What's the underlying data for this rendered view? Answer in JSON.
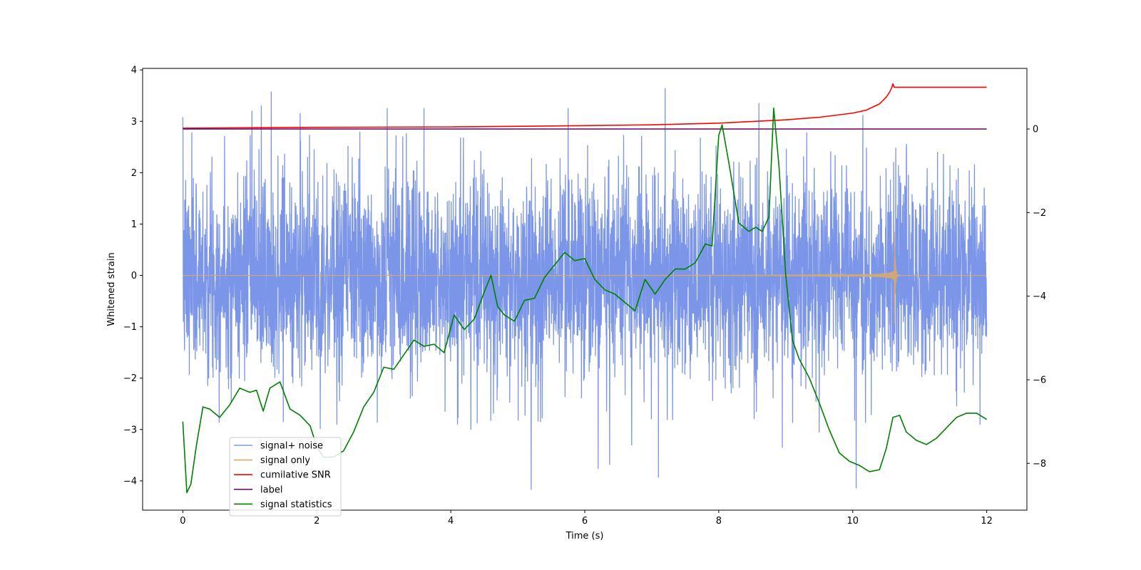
{
  "chart_data": {
    "type": "line",
    "title": "",
    "xlabel": "Time (s)",
    "ylabel": "Whitened strain",
    "xlim": [
      -0.6,
      12.6
    ],
    "ylim": [
      -4.57,
      4.03
    ],
    "y2lim": [
      -9.12,
      1.45
    ],
    "xticks": [
      0,
      2,
      4,
      6,
      8,
      10,
      12
    ],
    "yticks": [
      -4,
      -3,
      -2,
      -1,
      0,
      1,
      2,
      3,
      4
    ],
    "y2ticks": [
      -8,
      -6,
      -4,
      -2,
      0
    ],
    "xtick_labels": [
      "0",
      "2",
      "4",
      "6",
      "8",
      "10",
      "12"
    ],
    "ytick_labels": [
      "−4",
      "−3",
      "−2",
      "−1",
      "0",
      "1",
      "2",
      "3",
      "4"
    ],
    "y2tick_labels": [
      "−8",
      "−6",
      "−4",
      "−2",
      "0"
    ],
    "grid": false,
    "legend_position": "lower-left",
    "series": [
      {
        "name": "signal+ noise",
        "axis": "left",
        "color": "#7b95e8",
        "noise_std": 1.0,
        "duration": 12,
        "sample_rate": 350,
        "seed": 7,
        "outliers": [
          {
            "x": 0.0,
            "y": 3.08
          },
          {
            "x": 1.03,
            "y": 3.2
          },
          {
            "x": 1.17,
            "y": 3.3
          },
          {
            "x": 1.32,
            "y": 3.57
          },
          {
            "x": 1.75,
            "y": 3.15
          },
          {
            "x": 3.05,
            "y": 3.25
          },
          {
            "x": 3.6,
            "y": 3.25
          },
          {
            "x": 5.2,
            "y": -4.17
          },
          {
            "x": 5.75,
            "y": 3.25
          },
          {
            "x": 6.2,
            "y": -3.76
          },
          {
            "x": 6.37,
            "y": -3.68
          },
          {
            "x": 7.1,
            "y": -3.93
          },
          {
            "x": 7.2,
            "y": 3.64
          },
          {
            "x": 8.6,
            "y": 3.35
          },
          {
            "x": 8.95,
            "y": -3.35
          },
          {
            "x": 10.05,
            "y": -4.14
          },
          {
            "x": 10.15,
            "y": 3.12
          },
          {
            "x": 1.5,
            "y": -2.85
          },
          {
            "x": 2.3,
            "y": -2.9
          },
          {
            "x": 4.3,
            "y": -3.0
          },
          {
            "x": 6.7,
            "y": -3.3
          },
          {
            "x": 9.5,
            "y": -3.05
          },
          {
            "x": 11.9,
            "y": -2.9
          }
        ]
      },
      {
        "name": "signal only",
        "axis": "left",
        "color": "#d9a86a",
        "chirp": {
          "t_merge": 10.62,
          "f0": 35,
          "tau": 0.33,
          "a0": 0.02,
          "peak": 1.25,
          "ringdown": 0.012
        }
      },
      {
        "name": "cumilative SNR",
        "axis": "right",
        "color": "#ff0000",
        "x": [
          0,
          2,
          4,
          6,
          7,
          8,
          9,
          9.5,
          10,
          10.2,
          10.4,
          10.5,
          10.55,
          10.58,
          10.6,
          10.62,
          11,
          12
        ],
        "values": [
          0.02,
          0.04,
          0.05,
          0.08,
          0.1,
          0.14,
          0.22,
          0.28,
          0.38,
          0.45,
          0.6,
          0.76,
          0.88,
          0.98,
          1.08,
          1.0,
          1.0,
          1.0
        ]
      },
      {
        "name": "label",
        "axis": "right",
        "color": "#6b1670",
        "x": [
          0,
          12
        ],
        "values": [
          0,
          0
        ]
      },
      {
        "name": "signal statistics",
        "axis": "right",
        "color": "#008000",
        "x": [
          0,
          0.06,
          0.12,
          0.2,
          0.3,
          0.4,
          0.55,
          0.7,
          0.85,
          1.0,
          1.1,
          1.2,
          1.3,
          1.45,
          1.6,
          1.75,
          1.9,
          2.0,
          2.1,
          2.25,
          2.4,
          2.55,
          2.7,
          2.85,
          3.0,
          3.15,
          3.3,
          3.45,
          3.6,
          3.75,
          3.9,
          4.05,
          4.2,
          4.35,
          4.5,
          4.6,
          4.7,
          4.8,
          4.95,
          5.1,
          5.25,
          5.4,
          5.55,
          5.7,
          5.85,
          6.0,
          6.15,
          6.3,
          6.45,
          6.6,
          6.75,
          6.9,
          7.05,
          7.2,
          7.35,
          7.5,
          7.65,
          7.8,
          7.9,
          8.0,
          8.05,
          8.15,
          8.3,
          8.45,
          8.55,
          8.65,
          8.75,
          8.82,
          8.9,
          9.0,
          9.1,
          9.2,
          9.35,
          9.5,
          9.65,
          9.8,
          9.95,
          10.1,
          10.25,
          10.4,
          10.5,
          10.6,
          10.7,
          10.8,
          10.95,
          11.1,
          11.25,
          11.4,
          11.55,
          11.7,
          11.85,
          12.0
        ],
        "values": [
          -7.0,
          -8.7,
          -8.5,
          -7.6,
          -6.65,
          -6.7,
          -6.9,
          -6.6,
          -6.2,
          -6.3,
          -6.25,
          -6.75,
          -6.2,
          -6.05,
          -6.7,
          -6.85,
          -7.1,
          -7.6,
          -7.85,
          -7.85,
          -7.7,
          -7.25,
          -6.65,
          -6.3,
          -5.7,
          -5.75,
          -5.4,
          -5.05,
          -5.2,
          -5.15,
          -5.35,
          -4.45,
          -4.8,
          -4.55,
          -3.9,
          -3.5,
          -4.25,
          -4.45,
          -4.6,
          -4.1,
          -4.05,
          -3.55,
          -3.25,
          -2.95,
          -3.15,
          -3.1,
          -3.6,
          -3.85,
          -3.95,
          -4.15,
          -4.35,
          -3.6,
          -3.95,
          -3.6,
          -3.35,
          -3.35,
          -3.2,
          -2.75,
          -2.8,
          -0.15,
          0.1,
          -0.8,
          -2.25,
          -2.45,
          -2.35,
          -2.45,
          -2.1,
          0.5,
          -0.9,
          -3.5,
          -5.05,
          -5.5,
          -5.95,
          -6.55,
          -7.2,
          -7.75,
          -7.95,
          -8.05,
          -8.2,
          -8.15,
          -7.65,
          -6.9,
          -6.85,
          -7.25,
          -7.45,
          -7.55,
          -7.4,
          -7.15,
          -6.9,
          -6.8,
          -6.8,
          -6.95
        ]
      }
    ]
  }
}
